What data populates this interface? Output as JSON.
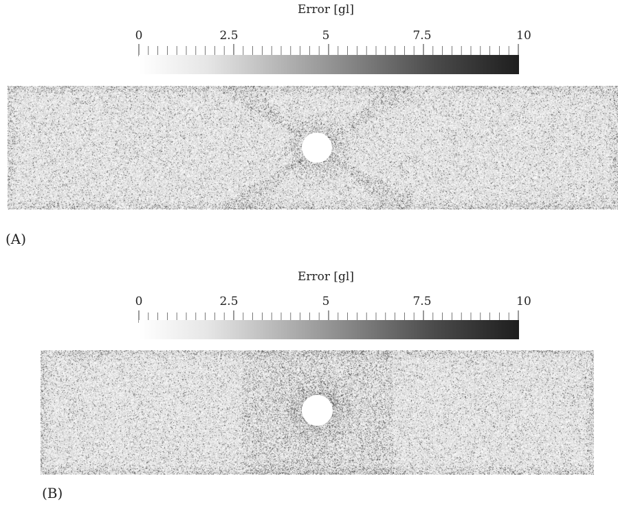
{
  "colorbar": {
    "title": "Error [gl]",
    "tick_labels": [
      "0",
      "2.5",
      "5",
      "7.5",
      "10"
    ],
    "range": [
      0,
      10
    ],
    "colors": {
      "low": "#ffffff",
      "high": "#1e1e1e"
    }
  },
  "panels": [
    {
      "label": "(A)"
    },
    {
      "label": "(B)"
    }
  ]
}
